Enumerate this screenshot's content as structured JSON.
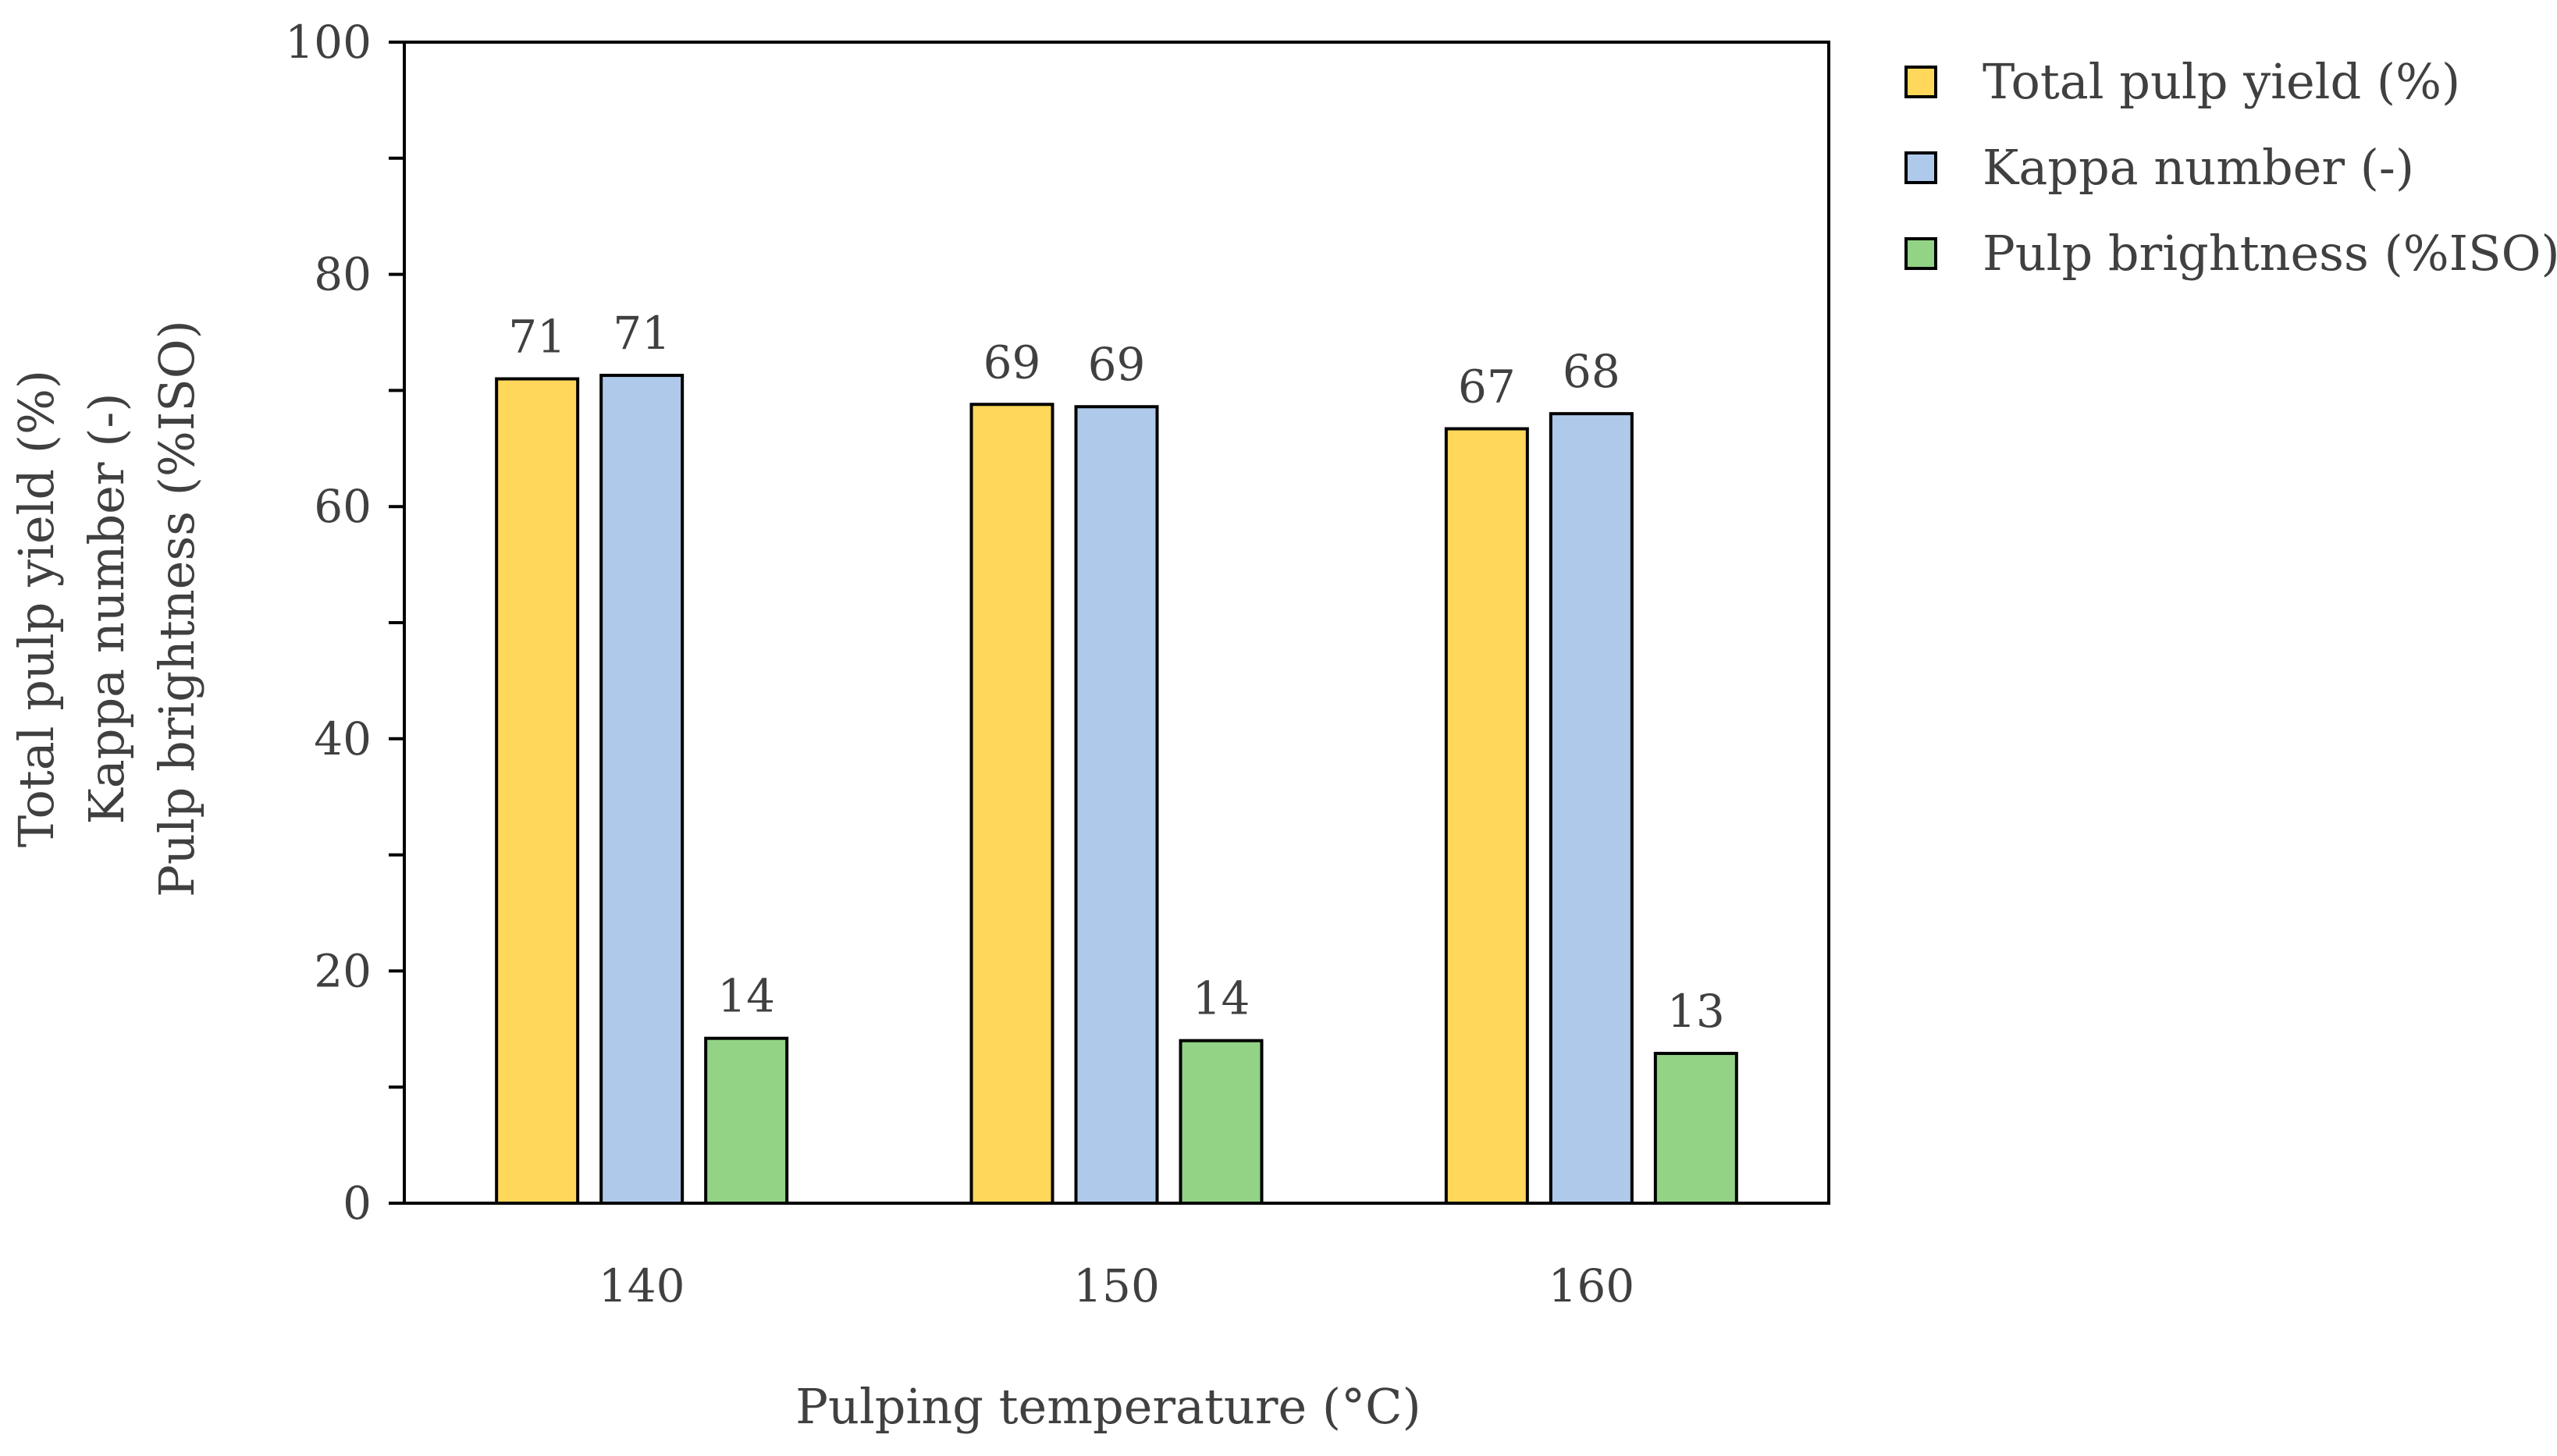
{
  "chart_data": {
    "type": "bar",
    "title": "",
    "xlabel": "Pulping temperature (°C)",
    "ylabel_lines": [
      "Total pulp yield (%)",
      "Kappa number (-)",
      "Pulp brightness (%ISO)"
    ],
    "categories": [
      "140",
      "150",
      "160"
    ],
    "ylim": [
      0,
      100
    ],
    "yticks": [
      0,
      20,
      40,
      60,
      80,
      100
    ],
    "minor_tick_step": 10,
    "grid": false,
    "legend_position": "top-right-outside",
    "series": [
      {
        "name": "Total pulp yield (%)",
        "color": "#FFD75A",
        "values": [
          71.0,
          68.8,
          66.7
        ],
        "labels": [
          "71",
          "69",
          "67"
        ]
      },
      {
        "name": "Kappa number (-)",
        "color": "#AFC9EA",
        "values": [
          71.3,
          68.6,
          68.0
        ],
        "labels": [
          "71",
          "69",
          "68"
        ]
      },
      {
        "name": "Pulp brightness (%ISO)",
        "color": "#92D386",
        "values": [
          14.2,
          14.0,
          12.9
        ],
        "labels": [
          "14",
          "14",
          "13"
        ]
      }
    ]
  }
}
